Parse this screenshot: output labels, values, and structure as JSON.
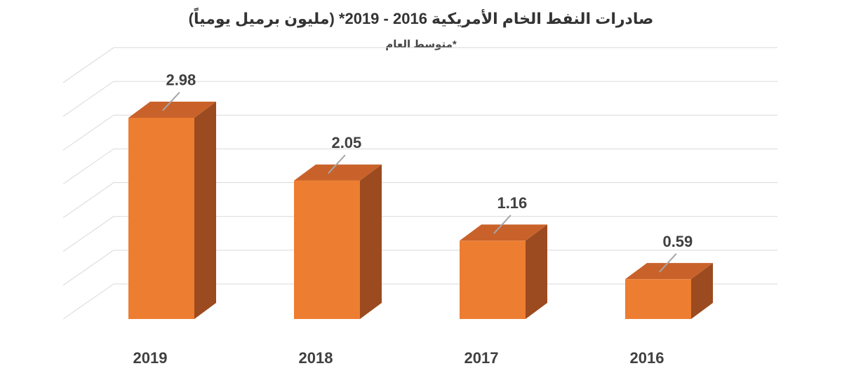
{
  "chart_data": {
    "type": "bar",
    "title": "صادرات النفط الخام الأمريكية 2016 - 2019* (مليون برميل يومياً)",
    "subtitle": "*متوسط العام",
    "categories": [
      "2019",
      "2018",
      "2017",
      "2016"
    ],
    "values": [
      2.98,
      2.05,
      1.16,
      0.59
    ],
    "value_labels": [
      "2.98",
      "2.05",
      "1.16",
      "0.59"
    ],
    "xlabel": "",
    "ylabel": "",
    "ylim": [
      0,
      3.5
    ],
    "grid": true,
    "legend": "none",
    "style": "3d-column",
    "colors": {
      "bar_front": "#ED7D31",
      "bar_top": "#C9622A",
      "bar_side": "#9C4A1F",
      "grid": "#D9D9D9",
      "label": "#404040"
    }
  }
}
